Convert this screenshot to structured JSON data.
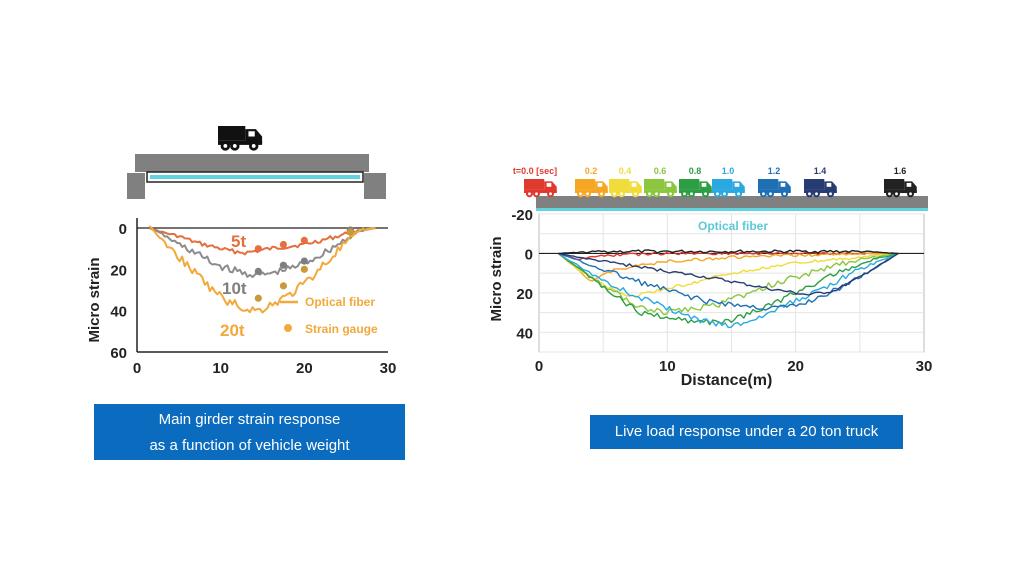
{
  "charts": [
    {
      "id": "left",
      "chart_data": {
        "type": "line",
        "ylabel": "Micro strain",
        "xlim": [
          0,
          30
        ],
        "ylim": [
          60,
          0
        ],
        "x_ticks": [
          "0",
          "10",
          "20",
          "30"
        ],
        "y_ticks": [
          "0",
          "20",
          "40",
          "60"
        ],
        "series": [
          {
            "name": "5t",
            "color": "#e46f3f",
            "x": [
              1.5,
              3,
              5,
              7,
              9,
              11,
              13,
              14.5,
              16,
              18,
              20,
              22,
              24,
              25.5,
              27,
              28.5
            ],
            "y": [
              0,
              2,
              4,
              7,
              9,
              11,
              12,
              11,
              10,
              9,
              8,
              6,
              4,
              2,
              1,
              0
            ]
          },
          {
            "name": "10t",
            "color": "#8c8c8c",
            "x": [
              1.5,
              3,
              5,
              7,
              9,
              11,
              13,
              14.5,
              16,
              18,
              20,
              22,
              24,
              25.5,
              27,
              28.5
            ],
            "y": [
              0,
              3,
              8,
              12,
              17,
              20,
              22,
              23,
              22,
              20,
              17,
              13,
              8,
              4,
              1,
              0
            ]
          },
          {
            "name": "20t",
            "color": "#f2a93b",
            "x": [
              1.5,
              3,
              5,
              7,
              9,
              11,
              13,
              14.5,
              16,
              18,
              20,
              22,
              24,
              25.5,
              27,
              28.5
            ],
            "y": [
              -1,
              6,
              14,
              22,
              30,
              36,
              39,
              40,
              37,
              33,
              27,
              19,
              11,
              5,
              1,
              0
            ]
          }
        ],
        "strain_gauge": {
          "5t": [
            [
              14.5,
              10
            ],
            [
              17.5,
              8
            ],
            [
              20,
              6
            ],
            [
              25.5,
              1
            ]
          ],
          "10t": [
            [
              14.5,
              21
            ],
            [
              17.5,
              18
            ],
            [
              20,
              16
            ],
            [
              25.5,
              1
            ]
          ],
          "20t": [
            [
              14.5,
              34
            ],
            [
              17.5,
              28
            ],
            [
              20,
              20
            ],
            [
              25.5,
              2
            ]
          ]
        },
        "series_labels": [
          "5t",
          "10t",
          "20t"
        ],
        "legend": [
          {
            "label": "Optical fiber",
            "marker": "line"
          },
          {
            "label": "Strain gauge",
            "marker": "dot"
          }
        ],
        "legend_placement": "bottom-right",
        "grid": false
      }
    },
    {
      "id": "right",
      "chart_data": {
        "type": "line",
        "xlabel": "Distance(m)",
        "ylabel": "Micro strain",
        "xlim": [
          0,
          30
        ],
        "ylim": [
          -20,
          50
        ],
        "x_ticks": [
          "0",
          "10",
          "20",
          "30"
        ],
        "y_ticks": [
          "-20",
          "0",
          "20",
          "40"
        ],
        "annotation": "Optical fiber",
        "time_labels": [
          "t=0.0 [sec]",
          "0.2",
          "0.4",
          "0.6",
          "0.8",
          "1.0",
          "1.2",
          "1.4",
          "1.6"
        ],
        "series": [
          {
            "name": "0.0",
            "color": "#e03a2f",
            "x": [
              1.5,
              3,
              5,
              10,
              15,
              20,
              25,
              28
            ],
            "y": [
              0,
              3,
              1,
              0,
              0,
              0,
              0,
              0
            ]
          },
          {
            "name": "0.2",
            "color": "#f5a623",
            "x": [
              1.5,
              3,
              4,
              6,
              10,
              15,
              20,
              25,
              28
            ],
            "y": [
              0,
              8,
              14,
              8,
              4,
              2,
              1,
              0,
              0
            ]
          },
          {
            "name": "0.4",
            "color": "#f0dc3a",
            "x": [
              1.5,
              3,
              5,
              7,
              10,
              15,
              20,
              25,
              28
            ],
            "y": [
              0,
              8,
              16,
              22,
              18,
              10,
              5,
              2,
              0
            ]
          },
          {
            "name": "0.6",
            "color": "#8cc63f",
            "x": [
              1.5,
              4,
              6,
              8,
              10,
              14,
              18,
              22,
              25,
              28
            ],
            "y": [
              0,
              12,
              20,
              28,
              30,
              26,
              16,
              8,
              3,
              0
            ]
          },
          {
            "name": "0.8",
            "color": "#2e9e44",
            "x": [
              1.5,
              4,
              6,
              8,
              10,
              12,
              14,
              16,
              18,
              22,
              25,
              28
            ],
            "y": [
              0,
              12,
              22,
              30,
              33,
              34,
              35,
              32,
              26,
              14,
              5,
              0
            ]
          },
          {
            "name": "1.0",
            "color": "#29a9e0",
            "x": [
              1.5,
              4,
              7,
              10,
              12,
              14,
              15,
              17,
              19,
              22,
              25,
              28
            ],
            "y": [
              0,
              10,
              20,
              28,
              33,
              36,
              37,
              33,
              27,
              18,
              8,
              0
            ]
          },
          {
            "name": "1.2",
            "color": "#1f6fb5",
            "x": [
              1.5,
              4,
              7,
              10,
              13,
              16,
              18,
              20,
              22,
              25,
              28
            ],
            "y": [
              0,
              6,
              13,
              19,
              24,
              27,
              28,
              27,
              22,
              12,
              0
            ]
          },
          {
            "name": "1.4",
            "color": "#263c73",
            "x": [
              1.5,
              4,
              7,
              10,
              14,
              18,
              21,
              23,
              25,
              28
            ],
            "y": [
              0,
              3,
              6,
              9,
              13,
              18,
              21,
              19,
              12,
              0
            ]
          },
          {
            "name": "1.6",
            "color": "#222222",
            "x": [
              1.5,
              5,
              10,
              15,
              20,
              25,
              28
            ],
            "y": [
              0,
              -1,
              -1,
              -1,
              -1,
              -1,
              0
            ]
          }
        ],
        "grid": true
      }
    }
  ],
  "captions": {
    "left_line1": "Main girder strain response",
    "left_line2": "as a function of vehicle weight",
    "right": "Live load response under a 20 ton truck"
  },
  "colors": {
    "caption_bg": "#0a6bbf",
    "beam": "#808080",
    "fiber": "#5fd3e0"
  },
  "icons": [
    "truck-icon"
  ]
}
